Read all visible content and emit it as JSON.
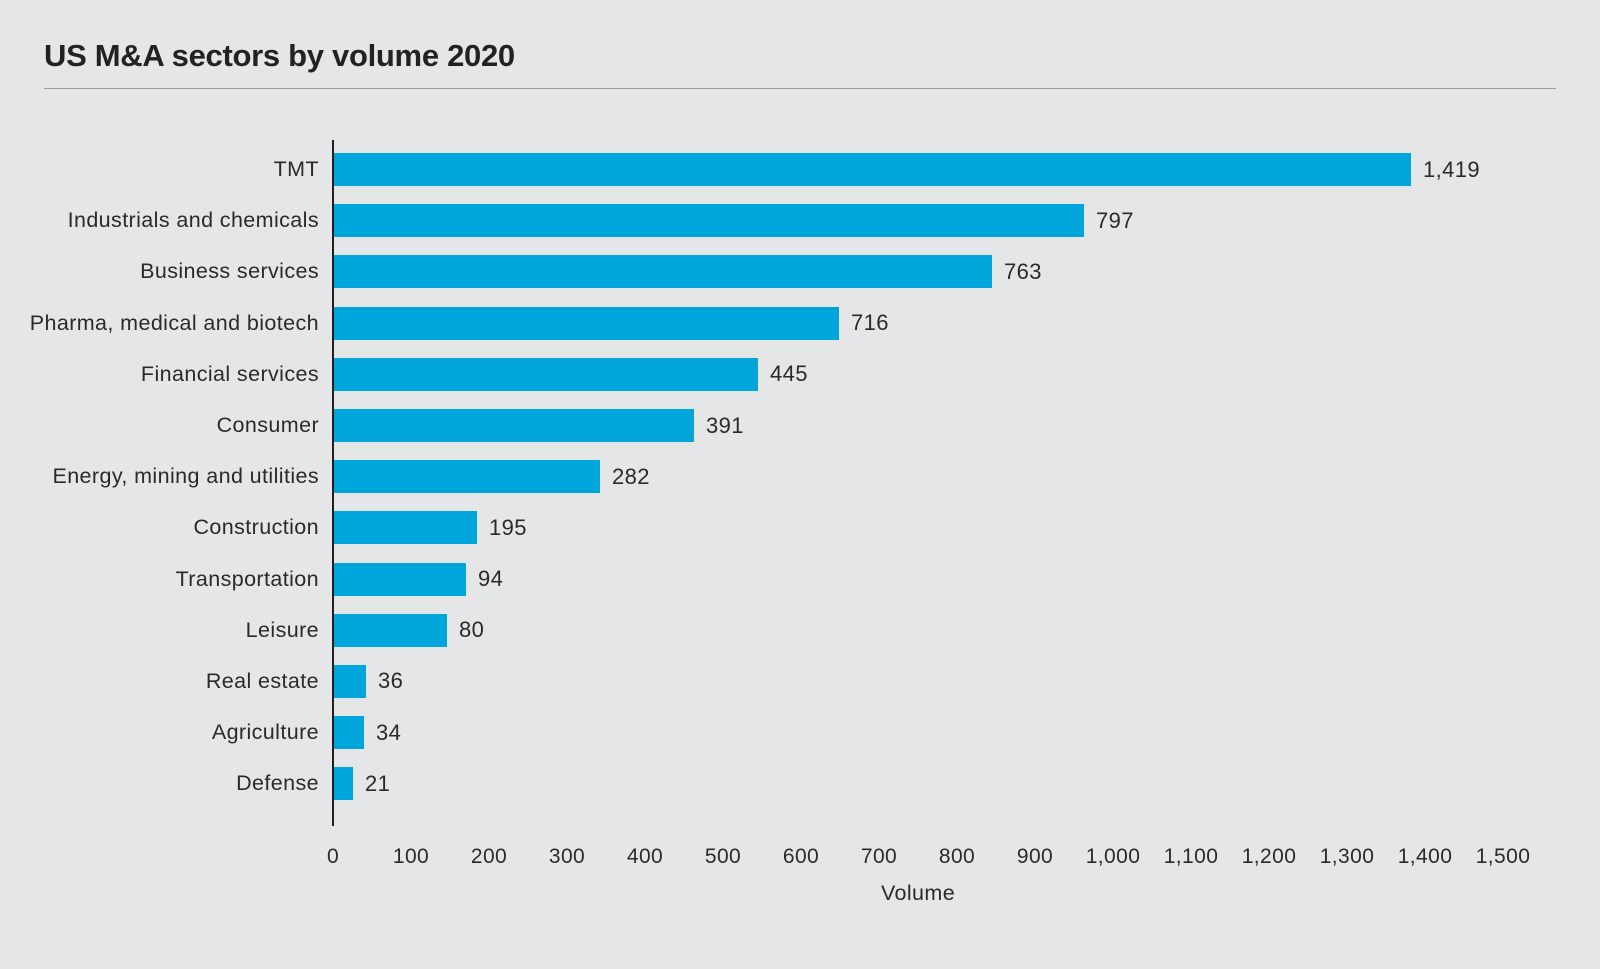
{
  "page": {
    "title": "US M&A sectors by volume 2020"
  },
  "colors": {
    "background": "#E4E6E7",
    "bar": "#00A5DC",
    "text": "#2B2A2A",
    "axis_line": "#231F20",
    "title_rule": "#9B9B9B"
  },
  "chart_data": {
    "type": "bar",
    "orientation": "horizontal",
    "title": "US M&A sectors by volume 2020",
    "xlabel": "Volume",
    "ylabel": "",
    "xlim": [
      0,
      1500
    ],
    "grid": false,
    "categories": [
      "TMT",
      "Industrials and chemicals",
      "Business services",
      "Pharma, medical and biotech",
      "Financial services",
      "Consumer",
      "Energy, mining and utilities",
      "Construction",
      "Transportation",
      "Leisure",
      "Real estate",
      "Agriculture",
      "Defense"
    ],
    "values": [
      1419,
      797,
      763,
      716,
      445,
      391,
      282,
      195,
      94,
      80,
      36,
      34,
      21
    ],
    "value_labels": [
      "1,419",
      "797",
      "763",
      "716",
      "445",
      "391",
      "282",
      "195",
      "94",
      "80",
      "36",
      "34",
      "21"
    ],
    "x_ticks": [
      0,
      100,
      200,
      300,
      400,
      500,
      600,
      700,
      800,
      900,
      1000,
      1100,
      1200,
      1300,
      1400,
      1500
    ],
    "x_tick_labels": [
      "0",
      "100",
      "200",
      "300",
      "400",
      "500",
      "600",
      "700",
      "800",
      "900",
      "1,000",
      "1,100",
      "1,200",
      "1,300",
      "1,400",
      "1,500"
    ],
    "layout_hints": {
      "legend": "none",
      "bar_drawn_extents_axis_units": [
        1381,
        962,
        844,
        647,
        544,
        462,
        341,
        183,
        169,
        145,
        41,
        38,
        24
      ],
      "note_on_extents": "bar lengths as drawn in the source image, read against its x-axis"
    }
  }
}
